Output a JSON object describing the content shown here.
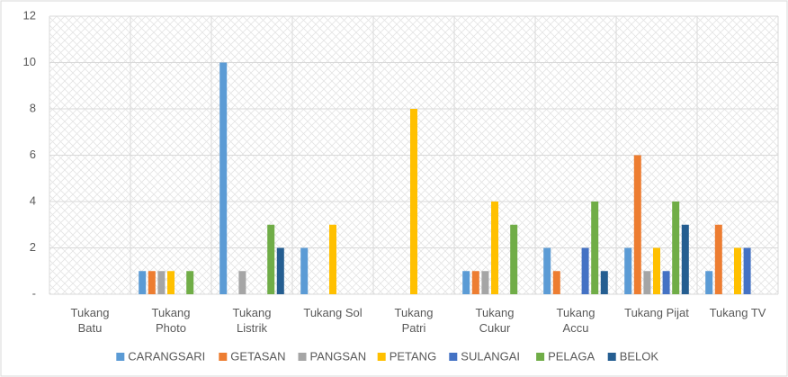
{
  "chart_data": {
    "type": "bar",
    "categories": [
      "Tukang\nBatu",
      "Tukang\nPhoto",
      "Tukang\nListrik",
      "Tukang Sol",
      "Tukang\nPatri",
      "Tukang\nCukur",
      "Tukang\nAccu",
      "Tukang Pijat",
      "Tukang TV"
    ],
    "series": [
      {
        "name": "CARANGSARI",
        "color": "#5b9bd5",
        "values": [
          0,
          1,
          10,
          2,
          0,
          1,
          2,
          2,
          1
        ]
      },
      {
        "name": "GETASAN",
        "color": "#ed7d31",
        "values": [
          0,
          1,
          0,
          0,
          0,
          1,
          1,
          6,
          3
        ]
      },
      {
        "name": "PANGSAN",
        "color": "#a5a5a5",
        "values": [
          0,
          1,
          1,
          0,
          0,
          1,
          0,
          1,
          0
        ]
      },
      {
        "name": "PETANG",
        "color": "#ffc000",
        "values": [
          0,
          1,
          0,
          3,
          8,
          4,
          0,
          2,
          2
        ]
      },
      {
        "name": "SULANGAI",
        "color": "#4472c4",
        "values": [
          0,
          0,
          0,
          0,
          0,
          0,
          2,
          1,
          2
        ]
      },
      {
        "name": "PELAGA",
        "color": "#70ad47",
        "values": [
          0,
          1,
          3,
          0,
          0,
          3,
          4,
          4,
          0
        ]
      },
      {
        "name": "BELOK",
        "color": "#255e91",
        "values": [
          0,
          0,
          2,
          0,
          0,
          0,
          1,
          3,
          0
        ]
      }
    ],
    "ylim": [
      0,
      12
    ],
    "yticks": [
      {
        "value": 0,
        "label": "-"
      },
      2,
      4,
      6,
      8,
      10,
      12
    ],
    "grid": true,
    "legend": "bottom"
  }
}
